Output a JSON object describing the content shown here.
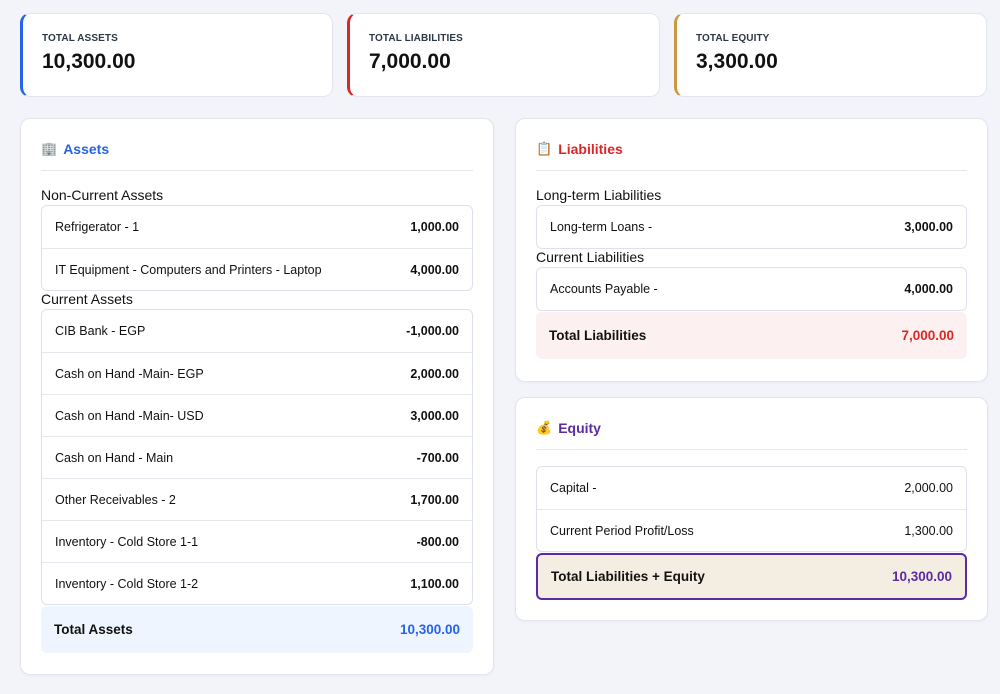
{
  "colors": {
    "assets": "#2563eb",
    "liabilities": "#dc2626",
    "equity": "#b8893a",
    "equity_title": "#5b2ca0"
  },
  "kpis": [
    {
      "label": "TOTAL ASSETS",
      "value": "10,300.00"
    },
    {
      "label": "TOTAL LIABILITIES",
      "value": "7,000.00"
    },
    {
      "label": "TOTAL EQUITY",
      "value": "3,300.00"
    }
  ],
  "assets": {
    "icon": "🏢",
    "title": "Assets",
    "groups": [
      {
        "label": "Non-Current Assets",
        "rows": [
          {
            "name": "Refrigerator - 1",
            "value": "1,000.00"
          },
          {
            "name": "IT Equipment - Computers and Printers - Laptop",
            "value": "4,000.00"
          }
        ]
      },
      {
        "label": "Current Assets",
        "rows": [
          {
            "name": "CIB Bank - EGP",
            "value": "-1,000.00"
          },
          {
            "name": "Cash on Hand -Main- EGP",
            "value": "2,000.00"
          },
          {
            "name": "Cash on Hand -Main- USD",
            "value": "3,000.00"
          },
          {
            "name": "Cash on Hand - Main",
            "value": "-700.00"
          },
          {
            "name": "Other Receivables - 2",
            "value": "1,700.00"
          },
          {
            "name": "Inventory - Cold Store 1-1",
            "value": "-800.00"
          },
          {
            "name": "Inventory - Cold Store 1-2",
            "value": "1,100.00"
          }
        ]
      }
    ],
    "total_label": "Total Assets",
    "total_value": "10,300.00"
  },
  "liabilities": {
    "icon": "📋",
    "title": "Liabilities",
    "groups": [
      {
        "label": "Long-term Liabilities",
        "rows": [
          {
            "name": "Long-term Loans -",
            "value": "3,000.00"
          }
        ]
      },
      {
        "label": "Current Liabilities",
        "rows": [
          {
            "name": "Accounts Payable -",
            "value": "4,000.00"
          }
        ]
      }
    ],
    "total_label": "Total Liabilities",
    "total_value": "7,000.00"
  },
  "equity": {
    "icon": "💰",
    "title": "Equity",
    "groups": [
      {
        "label": "",
        "rows": [
          {
            "name": "Capital -",
            "value": "2,000.00"
          },
          {
            "name": "Current Period Profit/Loss",
            "value": "1,300.00"
          }
        ]
      }
    ],
    "total_label": "Total Liabilities + Equity",
    "total_value": "10,300.00"
  }
}
